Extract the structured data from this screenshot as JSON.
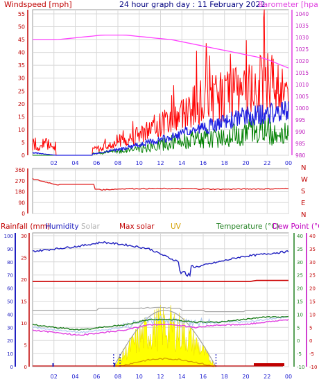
{
  "colors": {
    "wind": "#ff0000",
    "gust_fill": "#ff0000",
    "avg_wind": "#2020e0",
    "gust_green": "#008000",
    "barometer": "#ff40ff",
    "direction": "#e02020",
    "humidity": "#2020c0",
    "solar": "#a0a0a0",
    "max_solar": "#cc0000",
    "uv": "#d4a000",
    "temperature": "#208020",
    "dewpoint": "#e040e0",
    "rain": "#c00000",
    "grid": "#d8d8d8"
  },
  "panel1": {
    "title": "24 hour graph day : 11 February 2022",
    "left_label": "Windspeed [mph]",
    "right_label": "Barometer [hpa]",
    "left_ticks": [
      "0",
      "5",
      "10",
      "15",
      "20",
      "25",
      "30",
      "35",
      "40",
      "45",
      "50",
      "55"
    ],
    "right_ticks": [
      "980",
      "985",
      "990",
      "995",
      "1000",
      "1005",
      "1010",
      "1015",
      "1020",
      "1025",
      "1030",
      "1035",
      "1040"
    ]
  },
  "panel2": {
    "left_ticks": [
      "0",
      "90",
      "180",
      "270",
      "360"
    ],
    "compass": [
      "N",
      "W",
      "S",
      "E",
      "N"
    ]
  },
  "panel3": {
    "rainfall_label": "Rainfall (mm)",
    "humidity_label": "Humidity",
    "solar_label": "Solar",
    "max_solar_label": "Max solar",
    "uv_label": "UV",
    "temperature_label": "Temperature (°C)",
    "dewpoint_label": "Dew Point (°C)",
    "humidity_ticks": [
      "0",
      "10",
      "20",
      "30",
      "40",
      "50",
      "60",
      "70",
      "80",
      "90",
      "100"
    ],
    "rain_ticks": [
      "0",
      "5",
      "10",
      "15",
      "20",
      "25",
      "30"
    ],
    "temp_ticks": [
      "-10",
      "-5",
      "0",
      "5",
      "10",
      "15",
      "20",
      "25",
      "30",
      "35",
      "40"
    ]
  },
  "x_ticks": [
    "02",
    "04",
    "06",
    "08",
    "10",
    "12",
    "14",
    "16",
    "18",
    "20",
    "22",
    "00"
  ],
  "chart_data": [
    {
      "type": "line",
      "title": "24 hour graph day : 11 February 2022",
      "ylabel": "Windspeed [mph]",
      "y2label": "Barometer [hpa]",
      "x": [
        "02",
        "04",
        "06",
        "08",
        "10",
        "12",
        "14",
        "16",
        "18",
        "20",
        "22",
        "00"
      ],
      "ylim": [
        0,
        55
      ],
      "y2lim": [
        980,
        1040
      ],
      "series": [
        {
          "values": [
            3,
            0,
            1,
            3,
            6,
            10,
            14,
            20,
            23,
            24,
            29,
            26
          ]
        },
        {
          "values": [
            1,
            0,
            0,
            1,
            3,
            5,
            7,
            10,
            12,
            15,
            16,
            17
          ]
        },
        {
          "values": [
            0,
            0,
            0,
            1,
            2,
            3,
            5,
            6,
            7,
            9,
            10,
            8
          ]
        },
        {
          "values": [
            1029,
            1029,
            1030,
            1031,
            1031,
            1030,
            1029,
            1027,
            1025,
            1023,
            1021,
            1017
          ]
        }
      ]
    },
    {
      "type": "line",
      "ylim": [
        0,
        360
      ],
      "x": [
        "02",
        "04",
        "06",
        "08",
        "10",
        "12",
        "14",
        "16",
        "18",
        "20",
        "22",
        "00"
      ],
      "series": [
        {
          "values": [
            285,
            240,
            215,
            195,
            205,
            205,
            205,
            203,
            200,
            202,
            203,
            205
          ]
        }
      ]
    },
    {
      "type": "line",
      "x": [
        "02",
        "04",
        "06",
        "08",
        "10",
        "12",
        "14",
        "16",
        "18",
        "20",
        "22",
        "00"
      ],
      "ylim": [
        0,
        100
      ],
      "y2lim": [
        -10,
        40
      ],
      "series": [
        {
          "values": [
            88,
            90,
            92,
            95,
            93,
            90,
            82,
            76,
            80,
            84,
            86,
            88
          ]
        },
        {
          "values": [
            0,
            0,
            0,
            0,
            10,
            25,
            40,
            10,
            0,
            0,
            0,
            0
          ]
        },
        {
          "values": [
            0,
            0,
            0,
            0,
            8,
            12,
            13,
            10,
            4,
            0,
            0,
            0
          ]
        },
        {
          "values": [
            0,
            0,
            0,
            0,
            1,
            2,
            2,
            1,
            0,
            0,
            0,
            0
          ]
        },
        {
          "values": [
            6,
            5,
            4,
            5,
            6,
            8,
            8,
            7,
            7,
            8,
            9,
            9
          ]
        },
        {
          "values": [
            4,
            3,
            2,
            3,
            4,
            6,
            6,
            5,
            6,
            6,
            7,
            8
          ]
        },
        {
          "values": [
            0,
            0,
            0,
            0,
            0,
            0,
            0,
            0,
            0,
            0,
            0,
            0.3
          ]
        }
      ]
    }
  ]
}
